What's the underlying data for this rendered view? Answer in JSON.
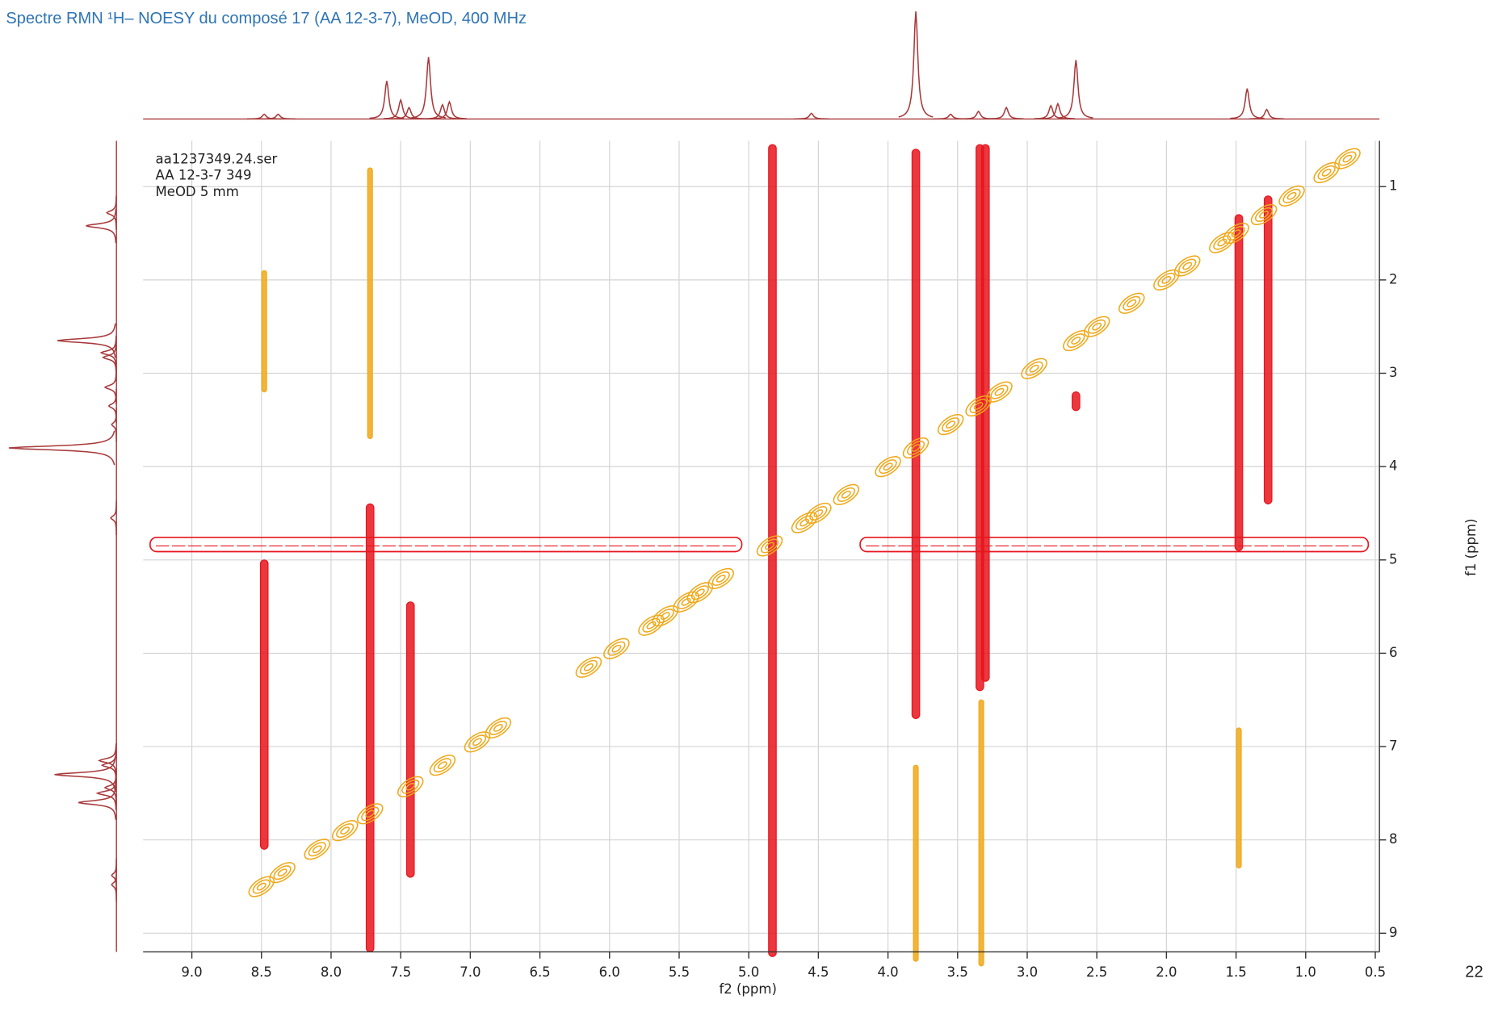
{
  "chart_data": {
    "type": "contour",
    "title": "Spectre RMN ¹H– NOESY du composé 17 (AA 12-3-7), MeOD, 400 MHz",
    "annotations": [
      "aa1237349.24.ser",
      "AA 12-3-7 349",
      "MeOD 5 mm"
    ],
    "page_number": "22",
    "x_label": "f2 (ppm)",
    "y_label": "f1 (ppm)",
    "xlim": [
      9.35,
      0.47
    ],
    "ylim": [
      0.51,
      9.2
    ],
    "xticks": [
      {
        "value": 9,
        "label": "9.0"
      },
      8.5,
      {
        "value": 8,
        "label": "8.0"
      },
      7.5,
      {
        "value": 7,
        "label": "7.0"
      },
      6.5,
      {
        "value": 6,
        "label": "6.0"
      },
      5.5,
      {
        "value": 5,
        "label": "5.0"
      },
      4.5,
      {
        "value": 4,
        "label": "4.0"
      },
      3.5,
      {
        "value": 3,
        "label": "3.0"
      },
      2.5,
      {
        "value": 2,
        "label": "2.0"
      },
      1.5,
      {
        "value": 1,
        "label": "1.0"
      },
      0.5
    ],
    "yticks": [
      1,
      2,
      3,
      4,
      5,
      6,
      7,
      8,
      9
    ],
    "grid": true,
    "projection": {
      "color": "#a8383a",
      "peaks": [
        {
          "ppm": 8.48,
          "height": 5
        },
        {
          "ppm": 8.38,
          "height": 5
        },
        {
          "ppm": 7.6,
          "height": 40
        },
        {
          "ppm": 7.5,
          "height": 20
        },
        {
          "ppm": 7.44,
          "height": 12
        },
        {
          "ppm": 7.3,
          "height": 65
        },
        {
          "ppm": 7.2,
          "height": 15
        },
        {
          "ppm": 7.15,
          "height": 18
        },
        {
          "ppm": 4.55,
          "height": 6
        },
        {
          "ppm": 3.8,
          "height": 113
        },
        {
          "ppm": 3.55,
          "height": 5
        },
        {
          "ppm": 3.35,
          "height": 8
        },
        {
          "ppm": 3.15,
          "height": 12
        },
        {
          "ppm": 2.83,
          "height": 14
        },
        {
          "ppm": 2.78,
          "height": 16
        },
        {
          "ppm": 2.65,
          "height": 62
        },
        {
          "ppm": 1.42,
          "height": 32
        },
        {
          "ppm": 1.28,
          "height": 10
        }
      ]
    },
    "diagonal": {
      "color": "#f0a818",
      "values": [
        8.5,
        8.35,
        8.1,
        7.9,
        7.72,
        7.43,
        7.2,
        6.95,
        6.8,
        6.15,
        5.95,
        5.7,
        5.6,
        5.45,
        5.35,
        5.2,
        4.85,
        4.6,
        4.5,
        4.3,
        4.0,
        3.8,
        3.55,
        3.35,
        3.2,
        2.95,
        2.65,
        2.5,
        2.25,
        2.0,
        1.85,
        1.6,
        1.5,
        1.3,
        1.1,
        0.85,
        0.7
      ]
    },
    "cross_peaks": [
      {
        "f2": 4.83,
        "f1": [
          0.55,
          9.25
        ],
        "color": "#e8141c"
      },
      {
        "f2": 3.8,
        "f1": [
          0.6,
          6.7
        ],
        "color": "#e8141c"
      },
      {
        "f2": 3.34,
        "f1": [
          0.55,
          6.4
        ],
        "color": "#e8141c"
      },
      {
        "f2": 3.3,
        "f1": [
          0.55,
          6.3
        ],
        "color": "#e8141c"
      },
      {
        "f2": 1.48,
        "f1": [
          1.3,
          4.9
        ],
        "color": "#e8141c"
      },
      {
        "f2": 1.27,
        "f1": [
          1.1,
          4.4
        ],
        "color": "#e8141c"
      },
      {
        "f2": 8.48,
        "f1": [
          5.0,
          8.1
        ],
        "color": "#e8141c"
      },
      {
        "f2": 7.72,
        "f1": [
          4.4,
          9.2
        ],
        "color": "#e8141c"
      },
      {
        "f2": 7.43,
        "f1": [
          5.45,
          8.4
        ],
        "color": "#e8141c"
      },
      {
        "f2": 2.65,
        "f1": [
          3.2,
          3.4
        ],
        "color": "#e8141c"
      },
      {
        "f2": 8.48,
        "f1": [
          1.9,
          3.2
        ],
        "color": "#f0a818"
      },
      {
        "f2": 7.72,
        "f1": [
          0.8,
          3.7
        ],
        "color": "#f0a818"
      },
      {
        "f2": 3.8,
        "f1": [
          7.2,
          9.3
        ],
        "color": "#f0a818"
      },
      {
        "f2": 3.33,
        "f1": [
          6.5,
          9.35
        ],
        "color": "#f0a818"
      },
      {
        "f2": 1.48,
        "f1": [
          6.8,
          8.3
        ],
        "color": "#f0a818"
      }
    ],
    "bands": [
      {
        "f1": 4.85,
        "f2": [
          9.3,
          5.05
        ],
        "color": "#e8141c"
      },
      {
        "f1": 4.85,
        "f2": [
          4.2,
          0.55
        ],
        "color": "#e8141c"
      }
    ]
  }
}
